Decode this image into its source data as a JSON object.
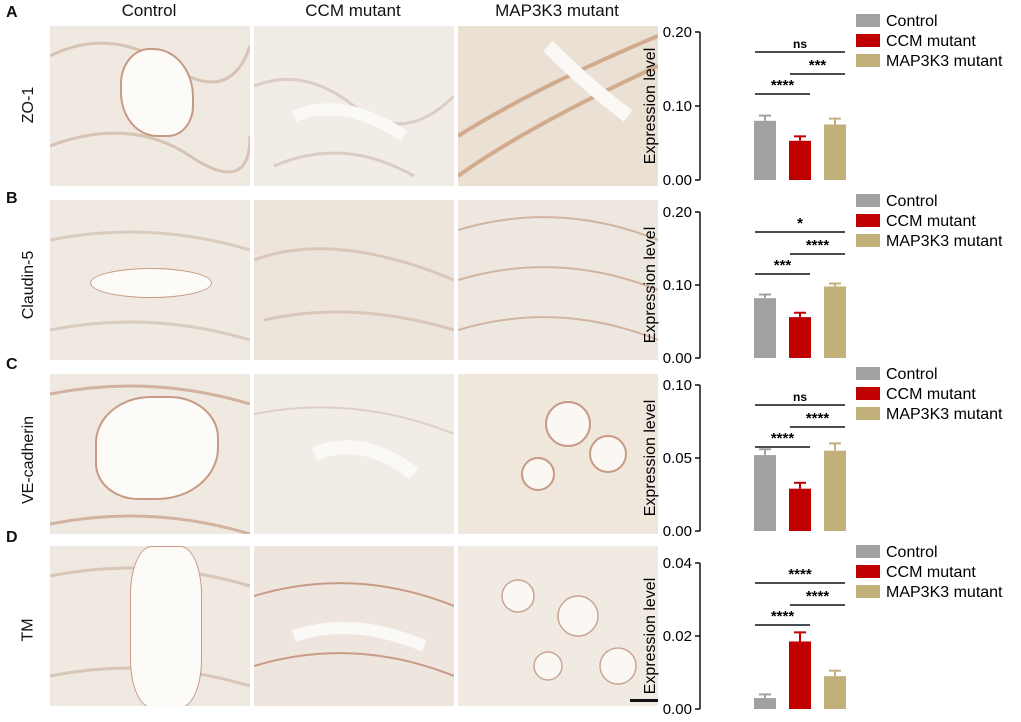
{
  "columns": [
    "Control",
    "CCM mutant",
    "MAP3K3 mutant"
  ],
  "panels": [
    {
      "letter": "A",
      "marker": "ZO-1"
    },
    {
      "letter": "B",
      "marker": "Claudin-5"
    },
    {
      "letter": "C",
      "marker": "VE-cadherin"
    },
    {
      "letter": "D",
      "marker": "TM"
    }
  ],
  "colors": {
    "Control": "#a3a0a2",
    "CCM mutant": "#c00000",
    "MAP3K3 mutant": "#c2b07a"
  },
  "chart_data": [
    {
      "type": "bar",
      "categories": [
        "Control",
        "CCM mutant",
        "MAP3K3 mutant"
      ],
      "values": [
        0.08,
        0.053,
        0.075
      ],
      "errors": [
        0.007,
        0.006,
        0.008
      ],
      "ylabel": "Expression level",
      "ylim": [
        0,
        0.2
      ],
      "yticks": [
        "0.00",
        "0.10",
        "0.20"
      ],
      "legend": [
        "Control",
        "CCM mutant",
        "MAP3K3 mutant"
      ],
      "significance": [
        {
          "from": 0,
          "to": 1,
          "label": "****"
        },
        {
          "from": 1,
          "to": 2,
          "label": "***"
        },
        {
          "from": 0,
          "to": 2,
          "label": "ns"
        }
      ]
    },
    {
      "type": "bar",
      "categories": [
        "Control",
        "CCM mutant",
        "MAP3K3 mutant"
      ],
      "values": [
        0.082,
        0.056,
        0.098
      ],
      "errors": [
        0.005,
        0.006,
        0.004
      ],
      "ylabel": "Expression level",
      "ylim": [
        0,
        0.2
      ],
      "yticks": [
        "0.00",
        "0.10",
        "0.20"
      ],
      "legend": [
        "Control",
        "CCM mutant",
        "MAP3K3 mutant"
      ],
      "significance": [
        {
          "from": 0,
          "to": 1,
          "label": "***"
        },
        {
          "from": 1,
          "to": 2,
          "label": "****"
        },
        {
          "from": 0,
          "to": 2,
          "label": "*"
        }
      ]
    },
    {
      "type": "bar",
      "categories": [
        "Control",
        "CCM mutant",
        "MAP3K3 mutant"
      ],
      "values": [
        0.052,
        0.029,
        0.055
      ],
      "errors": [
        0.004,
        0.004,
        0.005
      ],
      "ylabel": "Expression level",
      "ylim": [
        0,
        0.1
      ],
      "yticks": [
        "0.00",
        "0.05",
        "0.10"
      ],
      "legend": [
        "Control",
        "CCM mutant",
        "MAP3K3 mutant"
      ],
      "significance": [
        {
          "from": 0,
          "to": 1,
          "label": "****"
        },
        {
          "from": 1,
          "to": 2,
          "label": "****"
        },
        {
          "from": 0,
          "to": 2,
          "label": "ns"
        }
      ]
    },
    {
      "type": "bar",
      "categories": [
        "Control",
        "CCM mutant",
        "MAP3K3 mutant"
      ],
      "values": [
        0.003,
        0.0185,
        0.009
      ],
      "errors": [
        0.001,
        0.0025,
        0.0015
      ],
      "ylabel": "Expression level",
      "ylim": [
        0,
        0.04
      ],
      "yticks": [
        "0.00",
        "0.02",
        "0.04"
      ],
      "legend": [
        "Control",
        "CCM mutant",
        "MAP3K3 mutant"
      ],
      "significance": [
        {
          "from": 0,
          "to": 1,
          "label": "****"
        },
        {
          "from": 1,
          "to": 2,
          "label": "****"
        },
        {
          "from": 0,
          "to": 2,
          "label": "****"
        }
      ]
    }
  ]
}
